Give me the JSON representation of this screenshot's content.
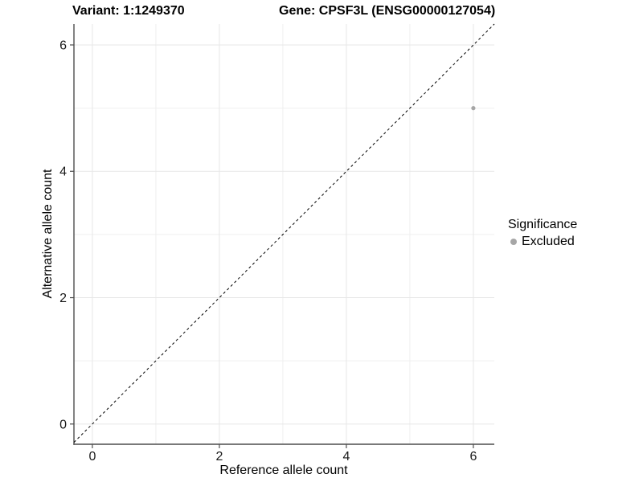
{
  "chart_data": {
    "type": "scatter",
    "titles": {
      "variant": "Variant: 1:1249370",
      "gene": "Gene: CPSF3L (ENSG00000127054)"
    },
    "xlabel": "Reference allele count",
    "ylabel": "Alternative allele count",
    "xlim": [
      -0.29,
      6.33
    ],
    "ylim": [
      -0.32,
      6.33
    ],
    "xticks": [
      0,
      2,
      4,
      6
    ],
    "yticks": [
      0,
      2,
      4,
      6
    ],
    "minor_gridlines_x": [
      1,
      3,
      5
    ],
    "minor_gridlines_y": [
      1,
      3,
      5
    ],
    "grid": true,
    "identity_line": {
      "style": "dashed",
      "from": [
        -0.29,
        -0.29
      ],
      "to": [
        6.33,
        6.33
      ]
    },
    "series": [
      {
        "name": "Excluded",
        "points": [
          {
            "x": 6,
            "y": 5
          }
        ]
      }
    ],
    "legend": {
      "title": "Significance",
      "position": "right",
      "entries": [
        {
          "label": "Excluded",
          "color": "#a6a6a6"
        }
      ]
    }
  },
  "colors": {
    "background": "#ffffff",
    "grid_major": "#e7e7e7",
    "grid_minor": "#efefef",
    "axis_line": "#4d4d4d",
    "tick_mark": "#4d4d4d",
    "tick_label": "#1a1a1a",
    "identity_line": "#000000",
    "point": "#a6a6a6"
  }
}
